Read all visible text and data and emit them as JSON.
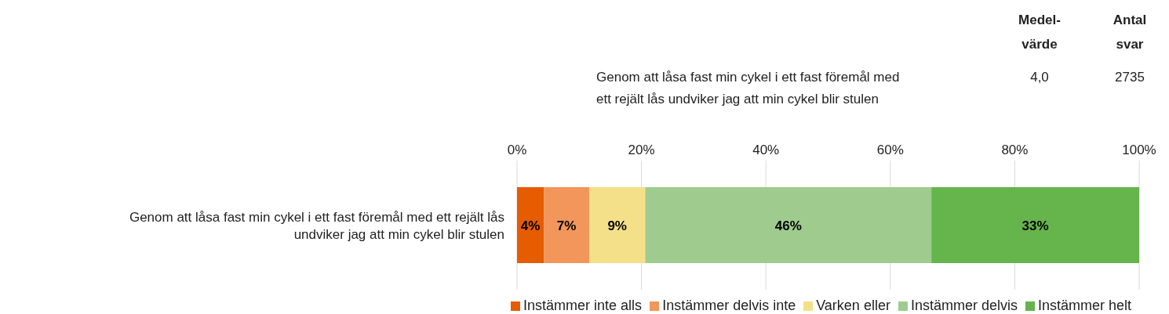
{
  "chart_data": {
    "type": "bar",
    "orientation": "horizontal",
    "stacked": true,
    "categories": [
      "Genom att låsa fast min cykel i ett fast föremål med ett rejält lås undviker jag att min cykel blir stulen"
    ],
    "series": [
      {
        "name": "Instämmer inte alls",
        "color": "#e65c00",
        "values": [
          4.3
        ],
        "value_labels": [
          "4%"
        ]
      },
      {
        "name": "Instämmer delvis inte",
        "color": "#f2965b",
        "values": [
          7.3
        ],
        "value_labels": [
          "7%"
        ]
      },
      {
        "name": "Varken eller",
        "color": "#f5e08a",
        "values": [
          9.0
        ],
        "value_labels": [
          "9%"
        ]
      },
      {
        "name": "Instämmer delvis",
        "color": "#9fcb8f",
        "values": [
          46.0
        ],
        "value_labels": [
          "46%"
        ]
      },
      {
        "name": "Instämmer helt",
        "color": "#66b44c",
        "values": [
          33.4
        ],
        "value_labels": [
          "33%"
        ]
      }
    ],
    "xlim": [
      0,
      100
    ],
    "xticks": [
      {
        "value": 0,
        "label": "0%"
      },
      {
        "value": 20,
        "label": "20%"
      },
      {
        "value": 40,
        "label": "40%"
      },
      {
        "value": 60,
        "label": "60%"
      },
      {
        "value": 80,
        "label": "80%"
      },
      {
        "value": 100,
        "label": "100%"
      }
    ],
    "grid": "x",
    "legend": "bottom",
    "annotations": [
      "Medel-\nvärde",
      "Antal\nsvar",
      "Genom att låsa fast min cykel i ett fast föremål med\nett rejält lås undviker jag att min cykel blir stulen",
      "4,0",
      "2735"
    ]
  }
}
